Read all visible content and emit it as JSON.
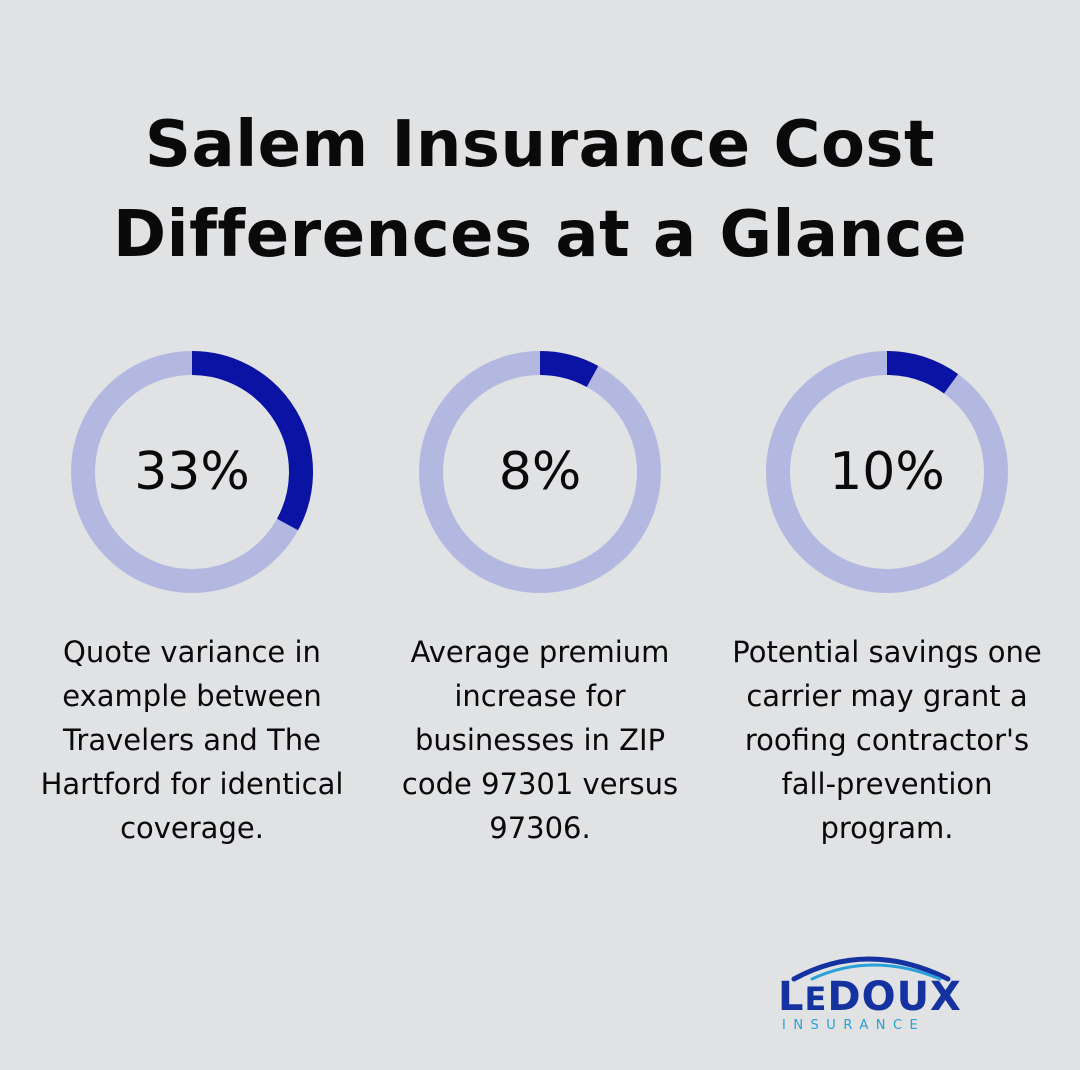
{
  "title": {
    "line1": "Salem Insurance Cost",
    "line2": "Differences at a Glance"
  },
  "colors": {
    "background": "#e1e2e3",
    "ring_track": "#b3b8e1",
    "ring_fill": "#0a13a3",
    "logo_primary": "#1432a0",
    "logo_accent": "#2aa0d8"
  },
  "chart_data": [
    {
      "type": "pie",
      "value": 33,
      "max": 100,
      "label": "33%",
      "description": "Quote variance in example between Travelers and The Hartford for identical coverage."
    },
    {
      "type": "pie",
      "value": 8,
      "max": 100,
      "label": "8%",
      "description": "Average premium increase for businesses in ZIP code 97301 versus 97306."
    },
    {
      "type": "pie",
      "value": 10,
      "max": 100,
      "label": "10%",
      "description": "Potential savings one carrier may grant a roofing contractor's fall-prevention program."
    }
  ],
  "logo": {
    "brand_first": "L",
    "brand_small": "E",
    "brand_rest": "DOUX",
    "sub": "INSURANCE"
  }
}
